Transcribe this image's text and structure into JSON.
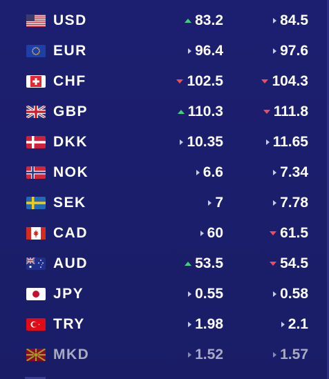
{
  "rates": [
    {
      "code": "USD",
      "flag": "us-flag-icon",
      "buy": "83.2",
      "buy_trend": "up",
      "sell": "84.5",
      "sell_trend": "same"
    },
    {
      "code": "EUR",
      "flag": "eu-flag-icon",
      "buy": "96.4",
      "buy_trend": "same",
      "sell": "97.6",
      "sell_trend": "same"
    },
    {
      "code": "CHF",
      "flag": "ch-flag-icon",
      "buy": "102.5",
      "buy_trend": "down",
      "sell": "104.3",
      "sell_trend": "down"
    },
    {
      "code": "GBP",
      "flag": "gb-flag-icon",
      "buy": "110.3",
      "buy_trend": "up",
      "sell": "111.8",
      "sell_trend": "down"
    },
    {
      "code": "DKK",
      "flag": "dk-flag-icon",
      "buy": "10.35",
      "buy_trend": "same",
      "sell": "11.65",
      "sell_trend": "same"
    },
    {
      "code": "NOK",
      "flag": "no-flag-icon",
      "buy": "6.6",
      "buy_trend": "same",
      "sell": "7.34",
      "sell_trend": "same"
    },
    {
      "code": "SEK",
      "flag": "se-flag-icon",
      "buy": "7",
      "buy_trend": "same",
      "sell": "7.78",
      "sell_trend": "same"
    },
    {
      "code": "CAD",
      "flag": "ca-flag-icon",
      "buy": "60",
      "buy_trend": "same",
      "sell": "61.5",
      "sell_trend": "down"
    },
    {
      "code": "AUD",
      "flag": "au-flag-icon",
      "buy": "53.5",
      "buy_trend": "up",
      "sell": "54.5",
      "sell_trend": "down"
    },
    {
      "code": "JPY",
      "flag": "jp-flag-icon",
      "buy": "0.55",
      "buy_trend": "same",
      "sell": "0.58",
      "sell_trend": "same"
    },
    {
      "code": "TRY",
      "flag": "tr-flag-icon",
      "buy": "1.98",
      "buy_trend": "same",
      "sell": "2.1",
      "sell_trend": "same"
    },
    {
      "code": "MKD",
      "flag": "mk-flag-icon",
      "buy": "1.52",
      "buy_trend": "same",
      "sell": "1.57",
      "sell_trend": "same"
    }
  ],
  "colors": {
    "background": "#1b1f6b",
    "up": "#3ed07a",
    "down": "#ef4d5a",
    "neutral": "#c6cae6"
  }
}
